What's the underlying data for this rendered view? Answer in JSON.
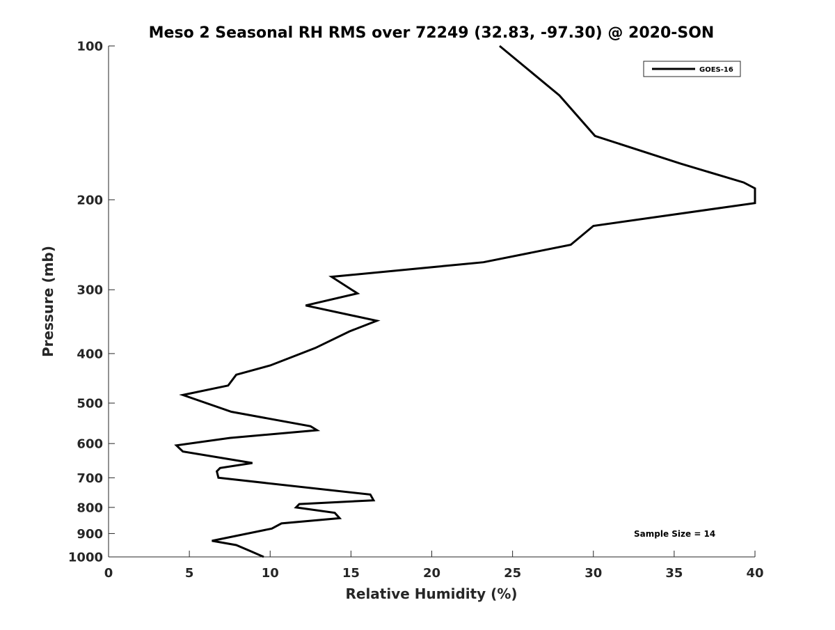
{
  "chart_data": {
    "type": "line",
    "title": "Meso 2 Seasonal RH RMS over 72249 (32.83, -97.30) @ 2020-SON",
    "xlabel": "Relative Humidity (%)",
    "ylabel": "Pressure (mb)",
    "xlim": [
      0,
      40
    ],
    "ylim": [
      100,
      1000
    ],
    "yscale": "log",
    "yreverse": true,
    "grid": false,
    "xticks": [
      0,
      5,
      10,
      15,
      20,
      25,
      30,
      35,
      40
    ],
    "yticks": [
      100,
      200,
      300,
      400,
      500,
      600,
      700,
      800,
      900,
      1000
    ],
    "legend": {
      "position": "top-right",
      "entries": [
        "GOES-16"
      ]
    },
    "annotation": "Sample Size = 14",
    "series": [
      {
        "name": "GOES-16",
        "color": "#000000",
        "points": [
          [
            24.2,
            100
          ],
          [
            27.9,
            125
          ],
          [
            30.1,
            150
          ],
          [
            35.4,
            170
          ],
          [
            39.3,
            185
          ],
          [
            40.0,
            190
          ],
          [
            40.0,
            203
          ],
          [
            30.0,
            225
          ],
          [
            28.6,
            245
          ],
          [
            23.2,
            265
          ],
          [
            13.8,
            283
          ],
          [
            15.4,
            305
          ],
          [
            12.2,
            322
          ],
          [
            16.6,
            345
          ],
          [
            14.9,
            362
          ],
          [
            12.8,
            390
          ],
          [
            10.0,
            422
          ],
          [
            7.9,
            440
          ],
          [
            7.4,
            462
          ],
          [
            4.6,
            482
          ],
          [
            7.6,
            520
          ],
          [
            12.5,
            555
          ],
          [
            12.9,
            565
          ],
          [
            7.5,
            585
          ],
          [
            4.2,
            605
          ],
          [
            4.6,
            622
          ],
          [
            8.9,
            655
          ],
          [
            6.9,
            670
          ],
          [
            6.7,
            680
          ],
          [
            6.8,
            700
          ],
          [
            16.2,
            755
          ],
          [
            16.4,
            775
          ],
          [
            11.8,
            788
          ],
          [
            11.6,
            800
          ],
          [
            14.0,
            820
          ],
          [
            14.3,
            840
          ],
          [
            10.7,
            860
          ],
          [
            10.1,
            880
          ],
          [
            6.4,
            930
          ],
          [
            7.9,
            948
          ],
          [
            8.8,
            975
          ],
          [
            9.6,
            1000
          ]
        ]
      }
    ]
  }
}
